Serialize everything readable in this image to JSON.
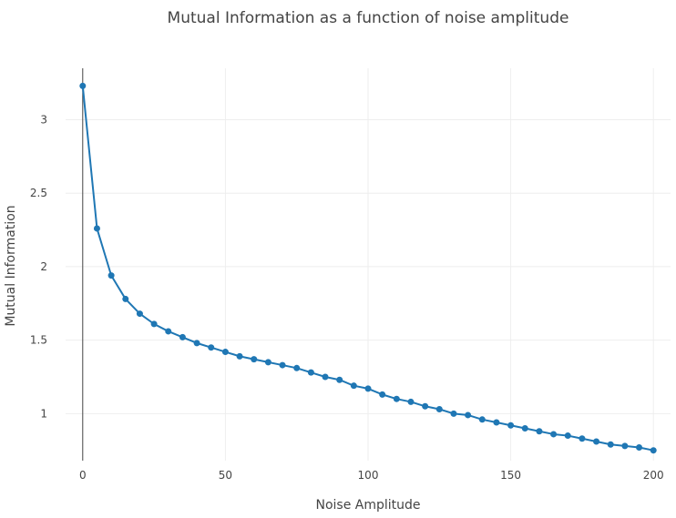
{
  "chart_data": {
    "type": "line",
    "title": "Mutual Information as a function of noise amplitude",
    "xlabel": "Noise Amplitude",
    "ylabel": "Mutual Information",
    "xlim": [
      -6,
      206
    ],
    "ylim": [
      0.68,
      3.35
    ],
    "xticks": [
      0,
      50,
      100,
      150,
      200
    ],
    "yticks": [
      1,
      1.5,
      2,
      2.5,
      3
    ],
    "xtick_labels": [
      "0",
      "50",
      "100",
      "150",
      "200"
    ],
    "ytick_labels": [
      "1",
      "1.5",
      "2",
      "2.5",
      "3"
    ],
    "grid": true,
    "legend": "none",
    "color": "#1f77b4",
    "series": [
      {
        "x": [
          0,
          5,
          10,
          15,
          20,
          25,
          30,
          35,
          40,
          45,
          50,
          55,
          60,
          65,
          70,
          75,
          80,
          85,
          90,
          95,
          100,
          105,
          110,
          115,
          120,
          125,
          130,
          135,
          140,
          145,
          150,
          155,
          160,
          165,
          170,
          175,
          180,
          185,
          190,
          195,
          200
        ],
        "y": [
          3.23,
          2.26,
          1.94,
          1.78,
          1.68,
          1.61,
          1.56,
          1.52,
          1.48,
          1.45,
          1.42,
          1.39,
          1.37,
          1.35,
          1.33,
          1.31,
          1.28,
          1.25,
          1.23,
          1.19,
          1.17,
          1.13,
          1.1,
          1.08,
          1.05,
          1.03,
          1.0,
          0.99,
          0.96,
          0.94,
          0.92,
          0.9,
          0.88,
          0.86,
          0.85,
          0.83,
          0.81,
          0.79,
          0.78,
          0.77,
          0.75
        ]
      }
    ]
  }
}
